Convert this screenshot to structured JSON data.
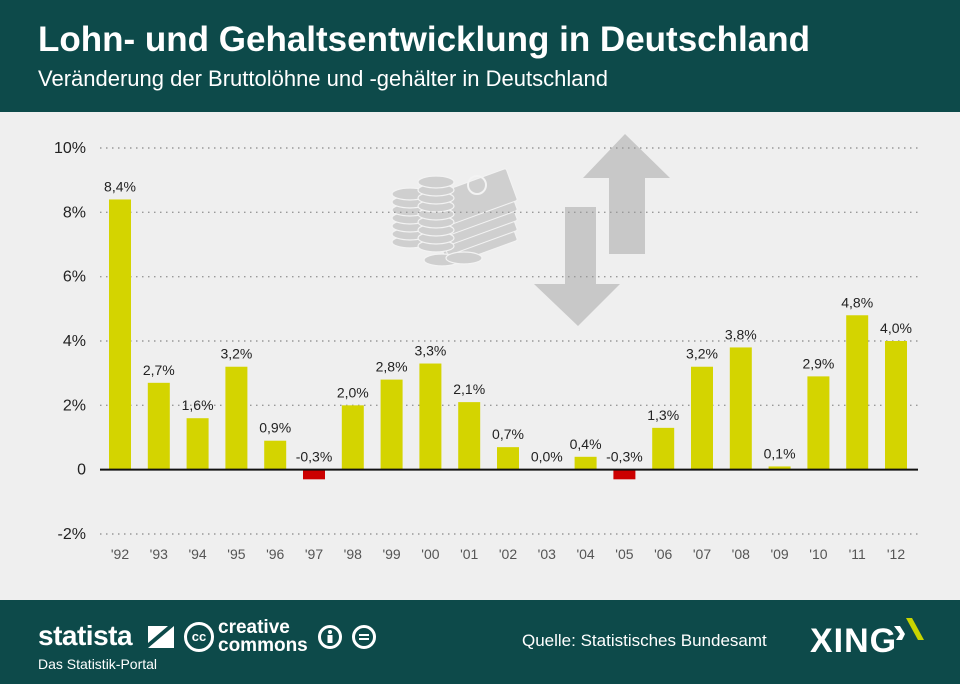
{
  "header": {
    "title": "Lohn- und Gehaltsentwicklung in Deutschland",
    "subtitle": "Veränderung der Bruttolöhne und -gehälter in Deutschland"
  },
  "footer": {
    "brand": "statista",
    "brand_sub": "Das Statistik-Portal",
    "cc_logo": "cc",
    "cc_line1": "creative",
    "cc_line2": "commons",
    "source": "Quelle: Statistisches Bundesamt",
    "partner": "XING",
    "icons": [
      "statista-icon",
      "creative-commons-icon",
      "attribution-icon",
      "no-derivatives-icon",
      "xing-icon"
    ]
  },
  "chart_data": {
    "type": "bar",
    "title": "Lohn- und Gehaltsentwicklung in Deutschland",
    "subtitle": "Veränderung der Bruttolöhne und -gehälter in Deutschland",
    "categories": [
      "'92",
      "'93",
      "'94",
      "'95",
      "'96",
      "'97",
      "'98",
      "'99",
      "'00",
      "'01",
      "'02",
      "'03",
      "'04",
      "'05",
      "'06",
      "'07",
      "'08",
      "'09",
      "'10",
      "'11",
      "'12"
    ],
    "values": [
      8.4,
      2.7,
      1.6,
      3.2,
      0.9,
      -0.3,
      2.0,
      2.8,
      3.3,
      2.1,
      0.7,
      0.0,
      0.4,
      -0.3,
      1.3,
      3.2,
      3.8,
      0.1,
      2.9,
      4.8,
      4.0
    ],
    "labels": [
      "8,4%",
      "2,7%",
      "1,6%",
      "3,2%",
      "0,9%",
      "-0,3%",
      "2,0%",
      "2,8%",
      "3,3%",
      "2,1%",
      "0,7%",
      "0,0%",
      "0,4%",
      "-0,3%",
      "1,3%",
      "3,2%",
      "3,8%",
      "0,1%",
      "2,9%",
      "4,8%",
      "4,0%"
    ],
    "y_ticks": [
      10,
      8,
      6,
      4,
      2,
      0,
      -2
    ],
    "y_tick_labels": [
      "10%",
      "8%",
      "6%",
      "4%",
      "2%",
      "0",
      "-2%"
    ],
    "ylim": [
      -2,
      10
    ],
    "xlabel": "",
    "ylabel": "",
    "grid": true,
    "colors": {
      "positive": "#d4d400",
      "negative": "#cc0000",
      "grid": "#999999",
      "axis": "#111111"
    },
    "decoration": [
      "money-icon",
      "arrow-up-icon",
      "arrow-down-icon"
    ]
  }
}
